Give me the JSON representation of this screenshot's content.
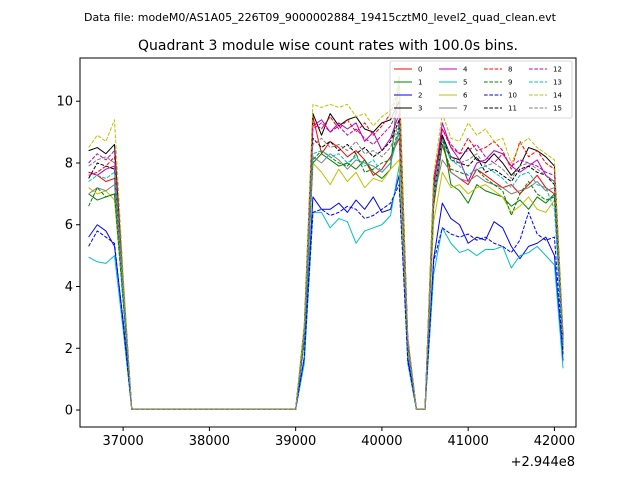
{
  "chart_data": {
    "type": "line",
    "suptitle": "Data file: modeM0/AS1A05_226T09_9000002884_19415cztM0_level2_quad_clean.evt",
    "title": "Quadrant 3 module wise count rates with 100.0s bins.",
    "xlabel": "",
    "ylabel": "",
    "x_offset_label": "+2.944e8",
    "xlim": [
      36500,
      42250
    ],
    "ylim": [
      -0.55,
      11.4
    ],
    "x_ticks": [
      37000,
      38000,
      39000,
      40000,
      41000,
      42000
    ],
    "x_tick_labels": [
      "37000",
      "38000",
      "39000",
      "40000",
      "41000",
      "42000"
    ],
    "y_ticks": [
      0,
      2,
      4,
      6,
      8,
      10
    ],
    "y_tick_labels": [
      "0",
      "2",
      "4",
      "6",
      "8",
      "10"
    ],
    "x": [
      36600,
      36700,
      36800,
      36900,
      37000,
      37100,
      37200,
      37300,
      37400,
      37500,
      37600,
      37700,
      37800,
      37900,
      38000,
      38100,
      38200,
      38300,
      38400,
      38500,
      38600,
      38700,
      38800,
      38900,
      39000,
      39100,
      39200,
      39300,
      39400,
      39500,
      39600,
      39700,
      39800,
      39900,
      40000,
      40100,
      40200,
      40300,
      40400,
      40500,
      40600,
      40700,
      40800,
      40900,
      41000,
      41100,
      41200,
      41300,
      41400,
      41500,
      41600,
      41700,
      41800,
      41900,
      42000,
      42100
    ],
    "series": [
      {
        "name": "0",
        "color": "#ff0000",
        "style": "solid",
        "values": [
          7.7,
          7.6,
          7.4,
          7.5,
          3.7,
          0.02,
          0.02,
          0.02,
          0.02,
          0.02,
          0.02,
          0.02,
          0.02,
          0.02,
          0.02,
          0.02,
          0.02,
          0.02,
          0.02,
          0.02,
          0.02,
          0.02,
          0.02,
          0.02,
          0.02,
          2.3,
          9.5,
          8.3,
          8.7,
          8.5,
          8.2,
          8.4,
          8.1,
          7.6,
          7.8,
          8.2,
          8.8,
          2.1,
          0.02,
          0.02,
          6.6,
          8.6,
          7.7,
          7.5,
          7.3,
          7.8,
          7.6,
          7.4,
          7.2,
          7.3,
          7.0,
          7.3,
          7.6,
          7.2,
          7.0,
          2.1
        ]
      },
      {
        "name": "1",
        "color": "#008000",
        "style": "solid",
        "values": [
          7.0,
          6.8,
          6.9,
          7.0,
          3.6,
          0.02,
          0.02,
          0.02,
          0.02,
          0.02,
          0.02,
          0.02,
          0.02,
          0.02,
          0.02,
          0.02,
          0.02,
          0.02,
          0.02,
          0.02,
          0.02,
          0.02,
          0.02,
          0.02,
          0.02,
          2.3,
          8.0,
          8.3,
          8.1,
          7.9,
          8.0,
          7.8,
          8.1,
          7.7,
          7.5,
          7.8,
          10.8,
          2.2,
          0.02,
          0.02,
          6.8,
          8.9,
          7.3,
          7.1,
          6.7,
          7.3,
          7.1,
          7.0,
          6.9,
          6.6,
          6.8,
          6.5,
          6.9,
          6.7,
          7.0,
          1.9
        ]
      },
      {
        "name": "2",
        "color": "#0000ff",
        "style": "solid",
        "values": [
          5.6,
          6.0,
          5.8,
          5.3,
          2.9,
          0.02,
          0.02,
          0.02,
          0.02,
          0.02,
          0.02,
          0.02,
          0.02,
          0.02,
          0.02,
          0.02,
          0.02,
          0.02,
          0.02,
          0.02,
          0.02,
          0.02,
          0.02,
          0.02,
          0.02,
          1.7,
          6.9,
          6.5,
          6.5,
          6.7,
          6.4,
          6.8,
          6.5,
          6.9,
          6.4,
          6.5,
          7.6,
          1.7,
          0.02,
          0.02,
          4.9,
          6.7,
          6.2,
          6.0,
          5.4,
          5.6,
          5.5,
          6.1,
          5.9,
          5.3,
          4.9,
          5.3,
          5.4,
          5.6,
          5.0,
          1.6
        ]
      },
      {
        "name": "3",
        "color": "#000000",
        "style": "solid",
        "values": [
          8.4,
          8.5,
          8.3,
          8.6,
          4.2,
          0.02,
          0.02,
          0.02,
          0.02,
          0.02,
          0.02,
          0.02,
          0.02,
          0.02,
          0.02,
          0.02,
          0.02,
          0.02,
          0.02,
          0.02,
          0.02,
          0.02,
          0.02,
          0.02,
          0.02,
          2.7,
          9.6,
          8.9,
          9.6,
          9.2,
          9.4,
          9.5,
          9.1,
          9.0,
          9.3,
          9.4,
          10.0,
          2.3,
          0.02,
          0.02,
          7.4,
          8.9,
          8.2,
          8.1,
          8.5,
          8.1,
          8.0,
          8.3,
          8.0,
          7.6,
          7.9,
          8.5,
          8.4,
          8.2,
          7.9,
          2.4
        ]
      },
      {
        "name": "4",
        "color": "#c000c0",
        "style": "solid",
        "values": [
          7.7,
          7.6,
          7.8,
          7.9,
          3.9,
          0.02,
          0.02,
          0.02,
          0.02,
          0.02,
          0.02,
          0.02,
          0.02,
          0.02,
          0.02,
          0.02,
          0.02,
          0.02,
          0.02,
          0.02,
          0.02,
          0.02,
          0.02,
          0.02,
          0.02,
          2.5,
          9.2,
          9.4,
          9.0,
          9.3,
          9.1,
          9.3,
          8.7,
          9.0,
          8.4,
          8.8,
          9.6,
          2.2,
          0.02,
          0.02,
          7.2,
          9.3,
          8.5,
          8.1,
          7.4,
          8.0,
          8.1,
          8.4,
          8.3,
          7.9,
          7.7,
          7.9,
          8.1,
          7.6,
          7.4,
          2.2
        ]
      },
      {
        "name": "5",
        "color": "#00c0c0",
        "style": "solid",
        "values": [
          4.95,
          4.8,
          4.75,
          5.0,
          2.6,
          0.02,
          0.02,
          0.02,
          0.02,
          0.02,
          0.02,
          0.02,
          0.02,
          0.02,
          0.02,
          0.02,
          0.02,
          0.02,
          0.02,
          0.02,
          0.02,
          0.02,
          0.02,
          0.02,
          0.02,
          1.5,
          6.4,
          6.4,
          5.9,
          6.2,
          6.1,
          5.4,
          5.8,
          5.9,
          6.0,
          6.3,
          7.9,
          1.5,
          0.02,
          0.02,
          4.4,
          5.9,
          5.4,
          5.1,
          5.2,
          5.0,
          5.2,
          5.2,
          5.3,
          4.6,
          5.0,
          5.1,
          5.3,
          5.0,
          4.7,
          1.35
        ]
      },
      {
        "name": "6",
        "color": "#c0c000",
        "style": "solid",
        "values": [
          7.2,
          7.0,
          7.1,
          6.8,
          3.6,
          0.02,
          0.02,
          0.02,
          0.02,
          0.02,
          0.02,
          0.02,
          0.02,
          0.02,
          0.02,
          0.02,
          0.02,
          0.02,
          0.02,
          0.02,
          0.02,
          0.02,
          0.02,
          0.02,
          0.02,
          2.2,
          8.0,
          7.7,
          7.3,
          7.8,
          7.4,
          7.7,
          7.2,
          7.5,
          7.4,
          7.8,
          8.1,
          2.0,
          0.02,
          0.02,
          6.1,
          7.7,
          7.2,
          7.3,
          7.0,
          7.2,
          7.3,
          7.1,
          6.9,
          6.4,
          6.6,
          6.9,
          6.5,
          6.4,
          6.8,
          1.9
        ]
      },
      {
        "name": "7",
        "color": "#808080",
        "style": "solid",
        "values": [
          7.0,
          7.2,
          7.1,
          7.3,
          3.7,
          0.02,
          0.02,
          0.02,
          0.02,
          0.02,
          0.02,
          0.02,
          0.02,
          0.02,
          0.02,
          0.02,
          0.02,
          0.02,
          0.02,
          0.02,
          0.02,
          0.02,
          0.02,
          0.02,
          0.02,
          2.3,
          8.2,
          8.0,
          8.3,
          8.1,
          7.8,
          8.1,
          8.0,
          7.9,
          7.7,
          8.0,
          9.0,
          2.1,
          0.02,
          0.02,
          6.9,
          8.1,
          7.7,
          7.5,
          7.4,
          7.6,
          7.4,
          7.3,
          7.2,
          7.0,
          7.1,
          7.2,
          7.4,
          7.1,
          7.2,
          2.0
        ]
      },
      {
        "name": "8",
        "color": "#ff0000",
        "style": "dashed",
        "values": [
          7.6,
          7.7,
          7.9,
          8.2,
          4.0,
          0.02,
          0.02,
          0.02,
          0.02,
          0.02,
          0.02,
          0.02,
          0.02,
          0.02,
          0.02,
          0.02,
          0.02,
          0.02,
          0.02,
          0.02,
          0.02,
          0.02,
          0.02,
          0.02,
          0.02,
          2.5,
          9.3,
          9.1,
          9.5,
          9.1,
          9.4,
          9.0,
          9.3,
          8.9,
          9.2,
          9.6,
          10.4,
          2.3,
          0.02,
          0.02,
          7.5,
          9.1,
          8.6,
          8.3,
          8.8,
          8.4,
          8.5,
          8.7,
          8.4,
          7.8,
          8.7,
          8.2,
          8.4,
          8.0,
          7.8,
          2.3
        ]
      },
      {
        "name": "9",
        "color": "#008000",
        "style": "dashed",
        "values": [
          6.6,
          7.2,
          6.9,
          7.0,
          3.5,
          0.02,
          0.02,
          0.02,
          0.02,
          0.02,
          0.02,
          0.02,
          0.02,
          0.02,
          0.02,
          0.02,
          0.02,
          0.02,
          0.02,
          0.02,
          0.02,
          0.02,
          0.02,
          0.02,
          0.02,
          2.2,
          8.1,
          8.4,
          8.2,
          8.0,
          7.9,
          8.3,
          7.7,
          7.8,
          8.0,
          8.1,
          9.2,
          2.1,
          0.02,
          0.02,
          6.7,
          8.6,
          7.8,
          7.7,
          7.6,
          7.8,
          7.5,
          7.3,
          7.1,
          6.3,
          7.0,
          7.4,
          7.0,
          6.8,
          6.9,
          2.0
        ]
      },
      {
        "name": "10",
        "color": "#0000ff",
        "style": "dashed",
        "values": [
          5.3,
          5.8,
          5.6,
          5.4,
          2.8,
          0.02,
          0.02,
          0.02,
          0.02,
          0.02,
          0.02,
          0.02,
          0.02,
          0.02,
          0.02,
          0.02,
          0.02,
          0.02,
          0.02,
          0.02,
          0.02,
          0.02,
          0.02,
          0.02,
          0.02,
          1.7,
          6.4,
          6.5,
          6.3,
          6.4,
          6.6,
          6.5,
          6.2,
          6.3,
          6.5,
          6.7,
          7.3,
          1.6,
          0.02,
          0.02,
          4.8,
          5.9,
          5.7,
          5.6,
          5.7,
          5.5,
          5.6,
          5.4,
          5.3,
          5.1,
          5.5,
          6.4,
          5.7,
          5.5,
          5.6,
          1.8
        ]
      },
      {
        "name": "11",
        "color": "#000000",
        "style": "dashed",
        "values": [
          7.5,
          8.0,
          7.9,
          7.8,
          3.9,
          0.02,
          0.02,
          0.02,
          0.02,
          0.02,
          0.02,
          0.02,
          0.02,
          0.02,
          0.02,
          0.02,
          0.02,
          0.02,
          0.02,
          0.02,
          0.02,
          0.02,
          0.02,
          0.02,
          0.02,
          2.4,
          8.8,
          8.5,
          8.7,
          8.4,
          8.6,
          8.3,
          8.5,
          8.2,
          8.4,
          8.7,
          9.4,
          2.2,
          0.02,
          0.02,
          7.0,
          8.8,
          8.1,
          8.0,
          7.9,
          8.2,
          7.7,
          7.8,
          7.6,
          7.4,
          7.8,
          7.9,
          7.7,
          7.6,
          7.3,
          2.2
        ]
      },
      {
        "name": "12",
        "color": "#c000c0",
        "style": "dashed",
        "values": [
          8.0,
          8.3,
          8.1,
          8.4,
          4.1,
          0.02,
          0.02,
          0.02,
          0.02,
          0.02,
          0.02,
          0.02,
          0.02,
          0.02,
          0.02,
          0.02,
          0.02,
          0.02,
          0.02,
          0.02,
          0.02,
          0.02,
          0.02,
          0.02,
          0.02,
          2.6,
          9.1,
          9.3,
          9.0,
          9.2,
          8.9,
          9.1,
          8.8,
          8.6,
          8.9,
          9.2,
          9.8,
          2.2,
          0.02,
          0.02,
          7.3,
          9.1,
          8.5,
          8.3,
          8.4,
          8.6,
          8.2,
          8.0,
          8.3,
          7.9,
          8.1,
          8.0,
          7.9,
          7.7,
          7.6,
          2.3
        ]
      },
      {
        "name": "13",
        "color": "#00c0c0",
        "style": "dashed",
        "values": [
          7.4,
          7.6,
          7.5,
          7.7,
          3.8,
          0.02,
          0.02,
          0.02,
          0.02,
          0.02,
          0.02,
          0.02,
          0.02,
          0.02,
          0.02,
          0.02,
          0.02,
          0.02,
          0.02,
          0.02,
          0.02,
          0.02,
          0.02,
          0.02,
          0.02,
          2.4,
          8.3,
          8.4,
          8.2,
          8.3,
          8.0,
          8.2,
          7.9,
          8.1,
          7.7,
          8.0,
          9.1,
          2.1,
          0.02,
          0.02,
          6.9,
          8.7,
          8.1,
          7.9,
          7.6,
          7.8,
          7.9,
          7.7,
          7.5,
          7.2,
          7.6,
          7.7,
          7.3,
          7.2,
          6.5,
          2.1
        ]
      },
      {
        "name": "14",
        "color": "#c0c000",
        "style": "dashed",
        "values": [
          8.5,
          8.9,
          8.7,
          9.4,
          4.4,
          0.02,
          0.02,
          0.02,
          0.02,
          0.02,
          0.02,
          0.02,
          0.02,
          0.02,
          0.02,
          0.02,
          0.02,
          0.02,
          0.02,
          0.02,
          0.02,
          0.02,
          0.02,
          0.02,
          0.02,
          2.8,
          9.9,
          9.8,
          9.9,
          9.8,
          9.9,
          9.5,
          9.6,
          9.2,
          9.5,
          9.7,
          10.7,
          2.4,
          0.02,
          0.02,
          7.6,
          9.6,
          8.8,
          8.7,
          9.3,
          8.9,
          9.1,
          8.7,
          8.8,
          8.0,
          8.6,
          8.8,
          8.5,
          8.3,
          8.1,
          2.5
        ]
      },
      {
        "name": "15",
        "color": "#808080",
        "style": "dashed",
        "values": [
          7.9,
          8.1,
          8.2,
          8.0,
          4.0,
          0.02,
          0.02,
          0.02,
          0.02,
          0.02,
          0.02,
          0.02,
          0.02,
          0.02,
          0.02,
          0.02,
          0.02,
          0.02,
          0.02,
          0.02,
          0.02,
          0.02,
          0.02,
          0.02,
          0.02,
          2.5,
          8.6,
          8.8,
          8.5,
          8.6,
          8.4,
          8.7,
          8.3,
          8.4,
          8.2,
          8.5,
          9.3,
          2.2,
          0.02,
          0.02,
          7.1,
          8.8,
          8.2,
          8.0,
          8.1,
          8.3,
          7.9,
          8.0,
          7.8,
          7.5,
          7.9,
          8.0,
          7.8,
          7.6,
          7.4,
          2.2
        ]
      }
    ],
    "legend": {
      "location": "top-right",
      "columns": 4,
      "fontsize": "small"
    }
  }
}
